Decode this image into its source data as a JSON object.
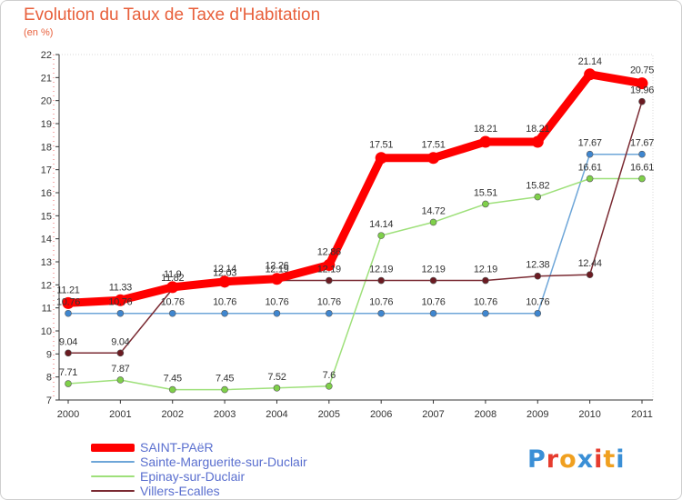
{
  "header": {
    "title": "Evolution du Taux de Taxe d'Habitation",
    "unit": "(en %)"
  },
  "logo": {
    "text": "Proxiti",
    "letters": [
      {
        "ch": "P",
        "color": "#3a8fd6"
      },
      {
        "ch": "r",
        "color": "#e63b2e"
      },
      {
        "ch": "o",
        "color": "#f0a020"
      },
      {
        "ch": "x",
        "color": "#3a8fd6"
      },
      {
        "ch": "i",
        "color": "#e63b2e"
      },
      {
        "ch": "t",
        "color": "#f0a020"
      },
      {
        "ch": "i",
        "color": "#3a8fd6"
      }
    ]
  },
  "chart_data": {
    "type": "line",
    "title": "Evolution du Taux de Taxe d'Habitation",
    "ylabel": "(en %)",
    "xlabel": "",
    "x": [
      "2000",
      "2001",
      "2002",
      "2003",
      "2004",
      "2005",
      "2006",
      "2007",
      "2008",
      "2009",
      "2010",
      "2011"
    ],
    "ylim": [
      7,
      22
    ],
    "yticks": [
      "7",
      "8",
      "9",
      "10",
      "11",
      "12",
      "13",
      "14",
      "15",
      "16",
      "17",
      "18",
      "19",
      "20",
      "21",
      "22"
    ],
    "grid": false,
    "legend_position": "bottom-left",
    "series": [
      {
        "name": "SAINT-PAëR",
        "color": "#ff0000",
        "values": [
          11.21,
          11.33,
          11.9,
          12.14,
          12.26,
          12.86,
          17.51,
          17.51,
          18.21,
          18.21,
          21.14,
          20.75
        ],
        "labels": [
          "11.21",
          "11.33",
          "11.9",
          "12.14",
          "12.26",
          "12.86",
          "17.51",
          "17.51",
          "18.21",
          "18.21",
          "21.14",
          "20.75"
        ]
      },
      {
        "name": "Sainte-Marguerite-sur-Duclair",
        "color": "#6ea6d8",
        "values": [
          10.76,
          10.76,
          10.76,
          10.76,
          10.76,
          10.76,
          10.76,
          10.76,
          10.76,
          10.76,
          17.67,
          17.67
        ],
        "labels": [
          "10.76",
          "10.76",
          "10.76",
          "10.76",
          "10.76",
          "10.76",
          "10.76",
          "10.76",
          "10.76",
          "10.76",
          "17.67",
          "17.67"
        ]
      },
      {
        "name": "Epinay-sur-Duclair",
        "color": "#9ee07a",
        "values": [
          7.71,
          7.87,
          7.45,
          7.45,
          7.52,
          7.6,
          14.14,
          14.72,
          15.51,
          15.82,
          16.61,
          16.61
        ],
        "labels": [
          "7.71",
          "7.87",
          "7.45",
          "7.45",
          "7.52",
          "7.6",
          "14.14",
          "14.72",
          "15.51",
          "15.82",
          "16.61",
          "16.61"
        ]
      },
      {
        "name": "Villers-Ecalles",
        "color": "#7a2a32",
        "values": [
          9.04,
          9.04,
          11.82,
          12.03,
          12.19,
          12.19,
          12.19,
          12.19,
          12.19,
          12.38,
          12.44,
          19.96
        ],
        "labels": [
          "9.04",
          "9.04",
          "11.82",
          "12.03",
          "12.19",
          "12.19",
          "12.19",
          "12.19",
          "12.19",
          "12.38",
          "12.44",
          "19.96"
        ]
      }
    ]
  }
}
